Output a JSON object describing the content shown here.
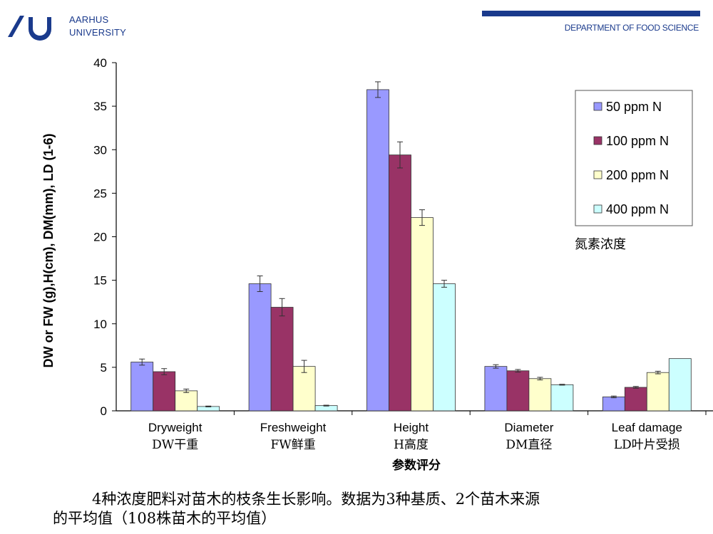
{
  "header": {
    "university_line1": "AARHUS",
    "university_line2": "UNIVERSITY",
    "department": "DEPARTMENT OF FOOD SCIENCE",
    "brand_color": "#1a3a8c"
  },
  "chart_data": {
    "type": "bar",
    "title": "",
    "ylabel": "DW or FW (g),H(cm), DM(mm), LD (1-6)",
    "xlabel": "参数评分",
    "ylim": [
      0,
      40
    ],
    "yticks": [
      0,
      5,
      10,
      15,
      20,
      25,
      30,
      35,
      40
    ],
    "grid": false,
    "legend_position": "top-right",
    "categories": [
      "Dryweight",
      "Freshweight",
      "Height",
      "Diameter",
      "Leaf damage"
    ],
    "categories_cn": [
      "DW干重",
      "FW鲜重",
      "H高度",
      "DM直径",
      "LD叶片受损"
    ],
    "series": [
      {
        "name": "50 ppm N",
        "color": "#9999ff",
        "values": [
          5.6,
          14.6,
          36.9,
          5.1,
          1.6
        ],
        "errors": [
          0.35,
          0.9,
          0.9,
          0.2,
          0.1
        ]
      },
      {
        "name": "100 ppm N",
        "color": "#993366",
        "values": [
          4.5,
          11.9,
          29.4,
          4.6,
          2.7
        ],
        "errors": [
          0.35,
          1.0,
          1.5,
          0.15,
          0.1
        ]
      },
      {
        "name": "200 ppm N",
        "color": "#ffffcc",
        "values": [
          2.3,
          5.1,
          22.2,
          3.7,
          4.4
        ],
        "errors": [
          0.2,
          0.7,
          0.9,
          0.15,
          0.15
        ]
      },
      {
        "name": "400 ppm N",
        "color": "#ccffff",
        "values": [
          0.5,
          0.6,
          14.6,
          3.0,
          6.0
        ],
        "errors": [
          0.05,
          0.05,
          0.4,
          0.05,
          0.0
        ]
      }
    ],
    "legend_note": "氮素浓度"
  },
  "caption": {
    "line1": "4种浓度肥料对苗木的枝条生长影响。数据为3种基质、2个苗木来源",
    "line2": "的平均值（108株苗木的平均值）"
  }
}
